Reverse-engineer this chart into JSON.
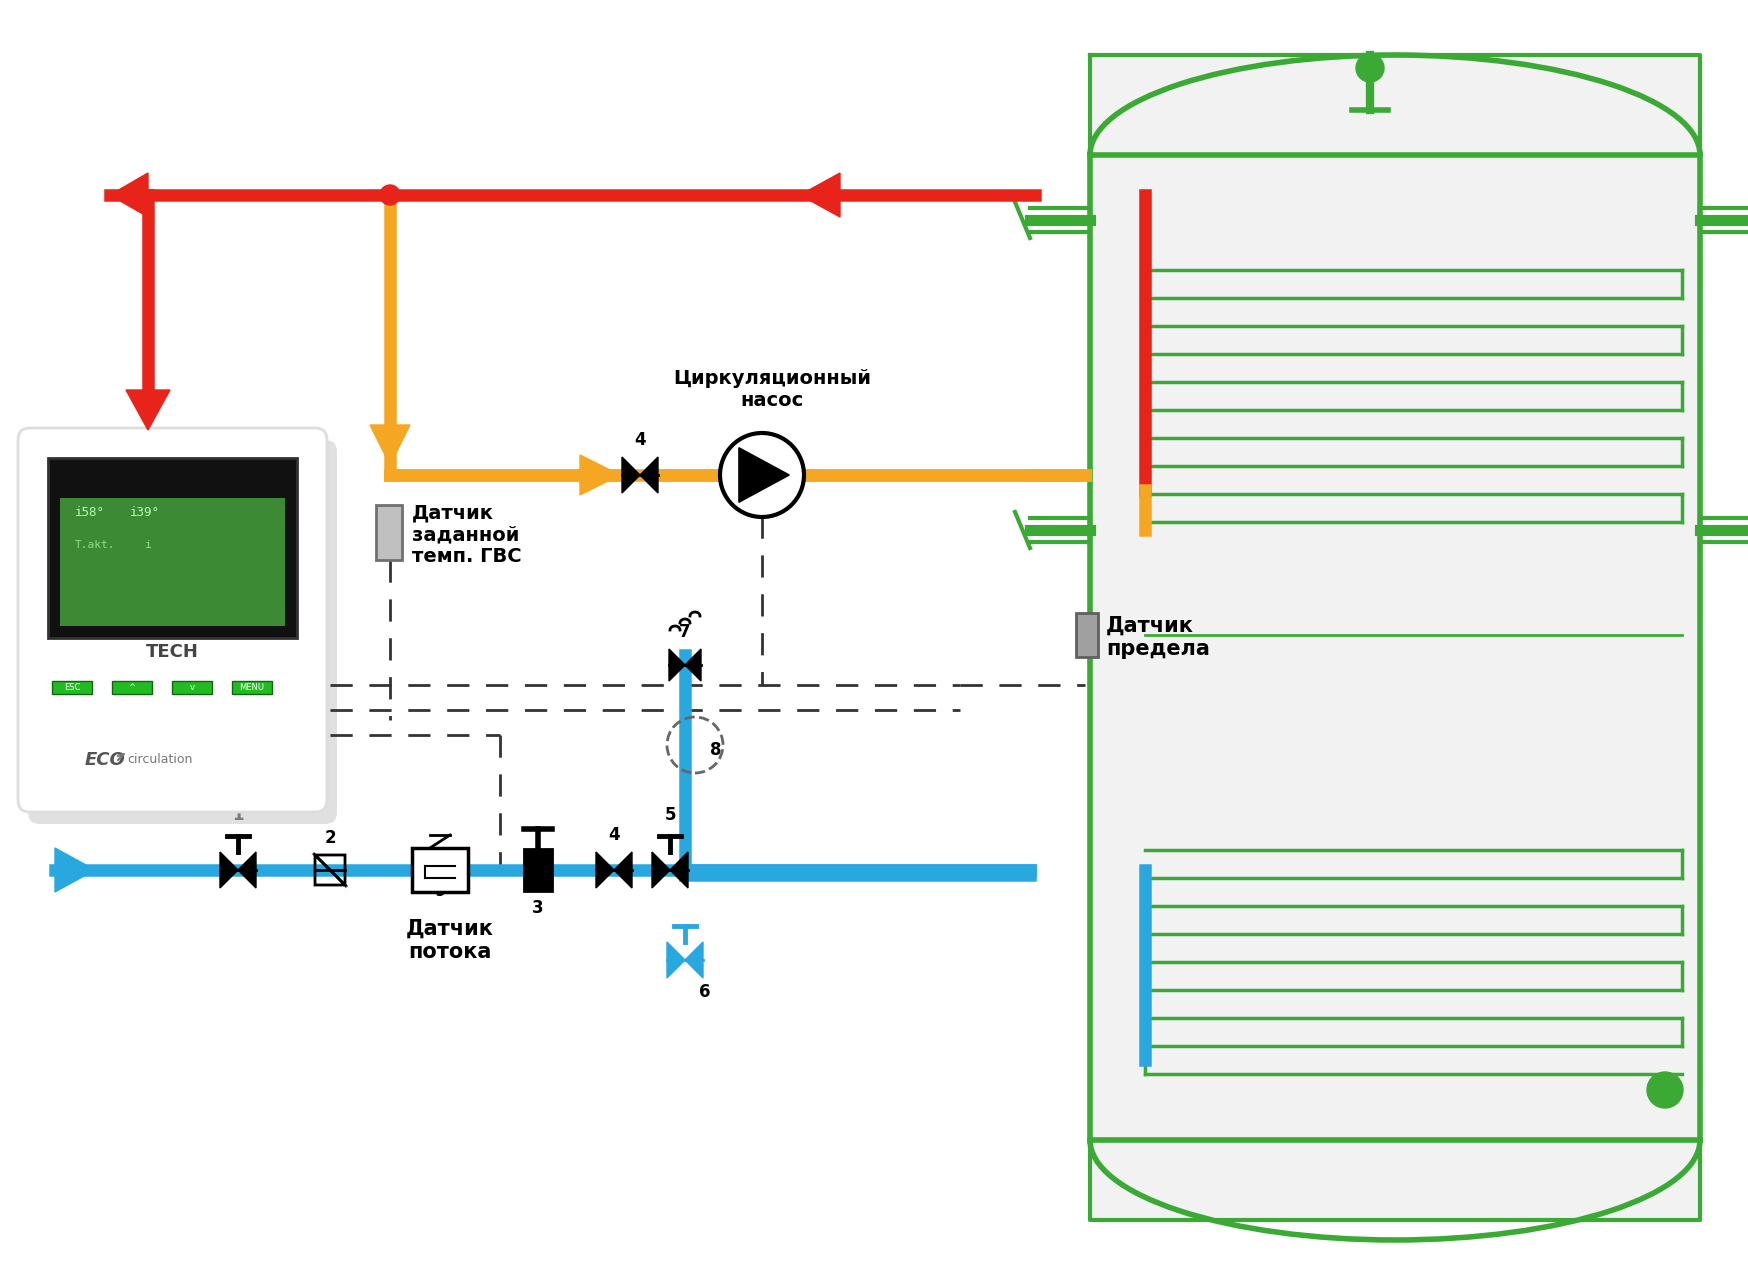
{
  "bg_color": "#ffffff",
  "red": "#e8231a",
  "orange": "#f5a623",
  "blue": "#29a8e0",
  "green": "#3aaa35",
  "black": "#000000",
  "gray": "#888888",
  "dark_gray": "#555555",
  "lw_pipe": 9,
  "lw_tank": 3,
  "label_sensor_gvs": "Датчик\nзаданной\nтемп. ГВС",
  "label_pump": "Циркуляционный\nнасос",
  "label_limit": "Датчик\nпредела",
  "label_flow": "Датчик\nпотока"
}
